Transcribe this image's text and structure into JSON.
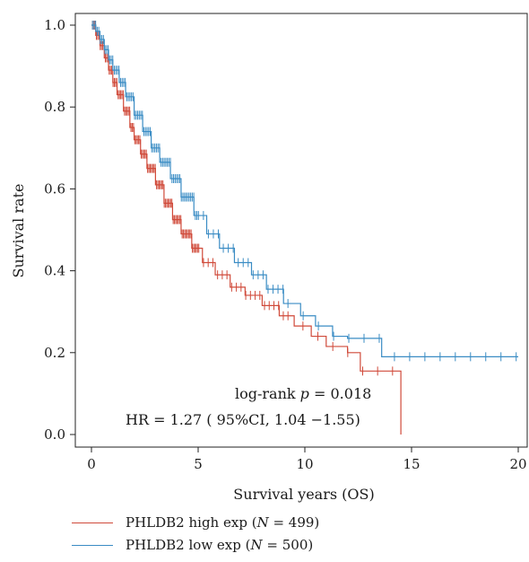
{
  "chart_data": {
    "type": "line",
    "subtype": "kaplan-meier",
    "title": "",
    "xlabel": "Survival years (OS)",
    "ylabel": "Survival rate",
    "xlim": [
      0,
      20
    ],
    "ylim": [
      0,
      1
    ],
    "xticks": [
      0,
      5,
      10,
      15,
      20
    ],
    "yticks": [
      "0.0",
      "0.2",
      "0.4",
      "0.6",
      "0.8",
      "1.0"
    ],
    "grid": false,
    "annotations": {
      "pvalue_prefix": "log-rank ",
      "pvalue_symbol": "p",
      "pvalue_value": " = 0.018",
      "hr_text": "HR = 1.27 ( 95%CI, 1.04 −1.55)"
    },
    "legend_position": "bottom-left",
    "series": [
      {
        "name": "PHLDB2 high exp",
        "n_label": "N",
        "n_value": " = 499)",
        "color": "#d04a3a",
        "x": [
          0,
          0.2,
          0.4,
          0.6,
          0.8,
          1.0,
          1.2,
          1.5,
          1.8,
          2.0,
          2.3,
          2.6,
          3.0,
          3.4,
          3.8,
          4.2,
          4.7,
          5.2,
          5.8,
          6.5,
          7.2,
          8.0,
          8.8,
          9.5,
          10.3,
          11.0,
          12.0,
          12.6,
          13.0,
          14.5,
          14.5
        ],
        "y": [
          1.0,
          0.975,
          0.95,
          0.92,
          0.89,
          0.86,
          0.83,
          0.79,
          0.75,
          0.72,
          0.685,
          0.65,
          0.61,
          0.565,
          0.525,
          0.49,
          0.455,
          0.42,
          0.39,
          0.36,
          0.34,
          0.315,
          0.29,
          0.265,
          0.24,
          0.215,
          0.2,
          0.155,
          0.155,
          0.155,
          0.0
        ]
      },
      {
        "name": "PHLDB2 low exp",
        "n_label": "N",
        "n_value": " = 500)",
        "color": "#3a8cc4",
        "x": [
          0,
          0.2,
          0.4,
          0.6,
          0.8,
          1.0,
          1.3,
          1.6,
          2.0,
          2.4,
          2.8,
          3.2,
          3.7,
          4.2,
          4.8,
          5.4,
          6.0,
          6.7,
          7.5,
          8.2,
          9.0,
          9.8,
          10.5,
          11.3,
          12.0,
          13.0,
          13.6,
          14.0,
          16.0,
          18.0,
          20.0
        ],
        "y": [
          1.0,
          0.985,
          0.965,
          0.94,
          0.915,
          0.89,
          0.86,
          0.825,
          0.78,
          0.74,
          0.7,
          0.665,
          0.625,
          0.58,
          0.535,
          0.49,
          0.455,
          0.42,
          0.39,
          0.355,
          0.32,
          0.29,
          0.265,
          0.24,
          0.235,
          0.235,
          0.19,
          0.19,
          0.19,
          0.19,
          0.19
        ]
      }
    ]
  }
}
